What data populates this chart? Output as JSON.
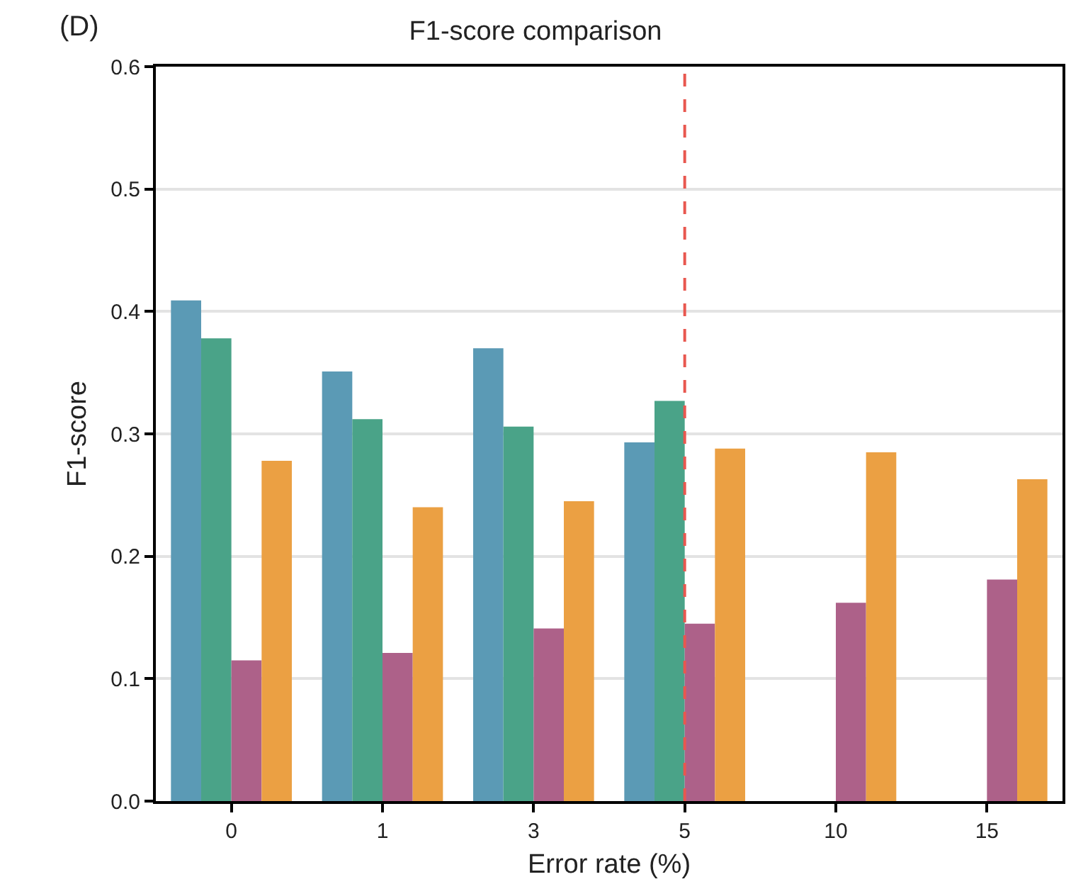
{
  "chart_data": {
    "type": "bar",
    "title": "F1-score comparison",
    "xlabel": "Error rate (%)",
    "ylabel": "F1-score",
    "annotations": [
      "(D)"
    ],
    "categories": [
      "0",
      "1",
      "3",
      "5",
      "10",
      "15"
    ],
    "series": [
      {
        "color": "#5b9ab5",
        "values": [
          0.409,
          0.351,
          0.37,
          0.293,
          null,
          null
        ]
      },
      {
        "color": "#4aa388",
        "values": [
          0.378,
          0.312,
          0.306,
          0.327,
          null,
          null
        ]
      },
      {
        "color": "#ad6189",
        "values": [
          0.115,
          0.121,
          0.141,
          0.145,
          0.162,
          0.181
        ]
      },
      {
        "color": "#eba043",
        "values": [
          0.278,
          0.24,
          0.245,
          0.288,
          0.285,
          0.263
        ]
      }
    ],
    "ylim": [
      0,
      0.6
    ],
    "yticks": [
      {
        "value": 0,
        "label": "0.0"
      },
      {
        "value": 0.1,
        "label": "0.1"
      },
      {
        "value": 0.2,
        "label": "0.2"
      },
      {
        "value": 0.3,
        "label": "0.3"
      },
      {
        "value": 0.4,
        "label": "0.4"
      },
      {
        "value": 0.5,
        "label": "0.5"
      },
      {
        "value": 0.6,
        "label": "0.6"
      }
    ],
    "grid": "y",
    "ref_lines": [
      {
        "axis": "x",
        "value": "5",
        "color": "#e8574f",
        "line_style": "dashed"
      }
    ]
  }
}
